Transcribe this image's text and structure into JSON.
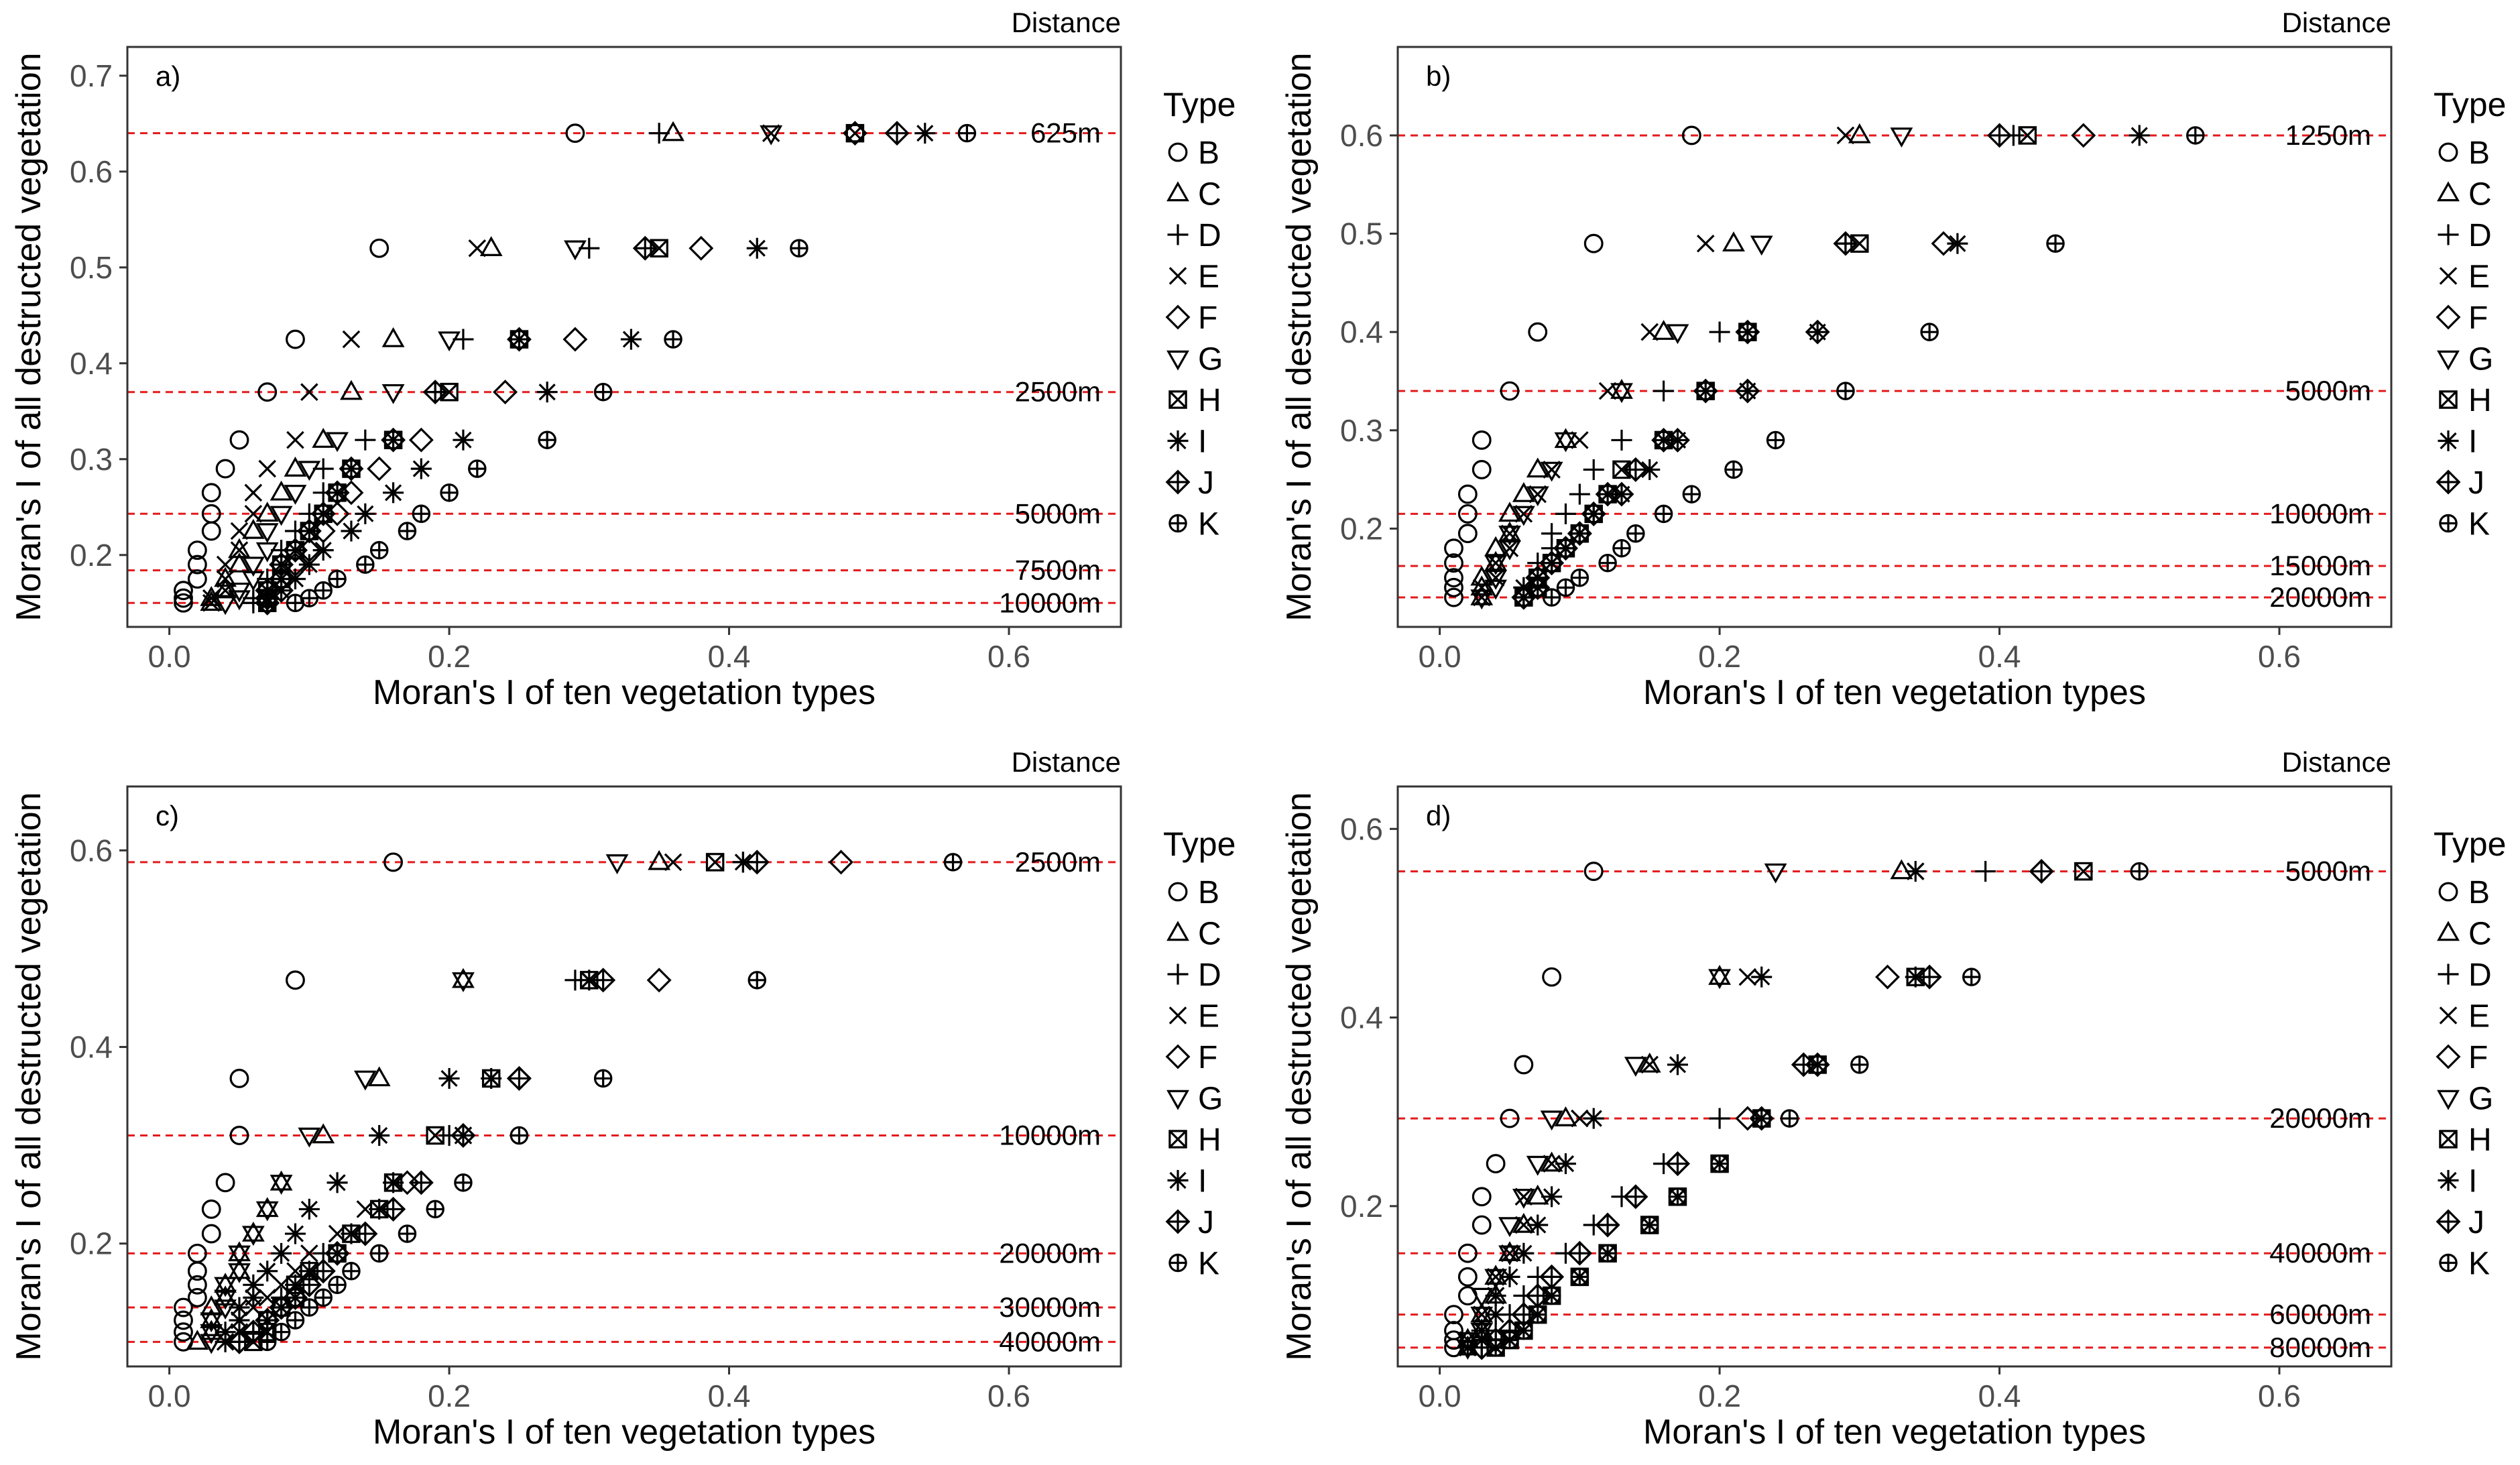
{
  "figure": {
    "marker_types": [
      "B",
      "C",
      "D",
      "E",
      "F",
      "G",
      "H",
      "I",
      "J",
      "K"
    ],
    "reference_line_color": "#e41a1c",
    "axis_color": "#333333",
    "text_color": "#000000"
  },
  "chart_data": [
    {
      "type": "scatter",
      "panel": "a)",
      "xlabel": "Moran's I of ten vegetation types",
      "ylabel": "Moran's I of all destructed vegetation",
      "legend_title": "Type",
      "legend_labels": [
        "B",
        "C",
        "D",
        "E",
        "F",
        "G",
        "H",
        "I",
        "J",
        "K"
      ],
      "distance_title": "Distance",
      "xlim": [
        -0.03,
        0.68
      ],
      "ylim": [
        0.125,
        0.73
      ],
      "xticks": [
        0.0,
        0.2,
        0.4,
        0.6
      ],
      "xtick_labels": [
        "0.0",
        "0.2",
        "0.4",
        "0.6"
      ],
      "yticks": [
        0.2,
        0.3,
        0.4,
        0.5,
        0.6,
        0.7
      ],
      "ytick_labels": [
        "0.2",
        "0.3",
        "0.4",
        "0.5",
        "0.6",
        "0.7"
      ],
      "reference_lines": [
        {
          "y": 0.64,
          "label": "625m"
        },
        {
          "y": 0.37,
          "label": "2500m"
        },
        {
          "y": 0.243,
          "label": "5000m"
        },
        {
          "y": 0.184,
          "label": "7500m"
        },
        {
          "y": 0.15,
          "label": "10000m"
        }
      ],
      "rows": [
        {
          "y": 0.64,
          "x": [
            0.29,
            0.36,
            0.35,
            0.43,
            0.49,
            0.43,
            0.49,
            0.54,
            0.52,
            0.57
          ]
        },
        {
          "y": 0.52,
          "x": [
            0.15,
            0.23,
            0.3,
            0.22,
            0.38,
            0.29,
            0.35,
            0.42,
            0.34,
            0.45
          ]
        },
        {
          "y": 0.425,
          "x": [
            0.09,
            0.16,
            0.21,
            0.13,
            0.29,
            0.2,
            0.25,
            0.33,
            0.25,
            0.36
          ]
        },
        {
          "y": 0.37,
          "x": [
            0.07,
            0.13,
            0.19,
            0.1,
            0.24,
            0.16,
            0.2,
            0.27,
            0.19,
            0.31
          ]
        },
        {
          "y": 0.32,
          "x": [
            0.05,
            0.11,
            0.14,
            0.09,
            0.18,
            0.12,
            0.16,
            0.21,
            0.16,
            0.27
          ]
        },
        {
          "y": 0.29,
          "x": [
            0.04,
            0.09,
            0.11,
            0.07,
            0.15,
            0.1,
            0.13,
            0.18,
            0.13,
            0.22
          ]
        },
        {
          "y": 0.265,
          "x": [
            0.03,
            0.08,
            0.11,
            0.06,
            0.13,
            0.09,
            0.12,
            0.16,
            0.12,
            0.2
          ]
        },
        {
          "y": 0.243,
          "x": [
            0.03,
            0.07,
            0.1,
            0.06,
            0.12,
            0.08,
            0.11,
            0.14,
            0.11,
            0.18
          ]
        },
        {
          "y": 0.225,
          "x": [
            0.03,
            0.06,
            0.09,
            0.05,
            0.11,
            0.07,
            0.1,
            0.13,
            0.1,
            0.17
          ]
        },
        {
          "y": 0.205,
          "x": [
            0.02,
            0.05,
            0.08,
            0.05,
            0.1,
            0.07,
            0.09,
            0.11,
            0.09,
            0.15
          ]
        },
        {
          "y": 0.19,
          "x": [
            0.02,
            0.05,
            0.08,
            0.04,
            0.09,
            0.06,
            0.08,
            0.1,
            0.08,
            0.14
          ]
        },
        {
          "y": 0.175,
          "x": [
            0.02,
            0.04,
            0.07,
            0.04,
            0.08,
            0.06,
            0.08,
            0.09,
            0.08,
            0.12
          ]
        },
        {
          "y": 0.163,
          "x": [
            0.01,
            0.04,
            0.07,
            0.04,
            0.08,
            0.05,
            0.07,
            0.08,
            0.07,
            0.11
          ]
        },
        {
          "y": 0.155,
          "x": [
            0.01,
            0.03,
            0.06,
            0.03,
            0.07,
            0.05,
            0.07,
            0.07,
            0.07,
            0.1
          ]
        },
        {
          "y": 0.15,
          "x": [
            0.01,
            0.03,
            0.06,
            0.03,
            0.07,
            0.04,
            0.07,
            0.07,
            0.07,
            0.09
          ]
        }
      ]
    },
    {
      "type": "scatter",
      "panel": "b)",
      "xlabel": "Moran's I of ten vegetation types",
      "ylabel": "Moran's I of all destructed vegetation",
      "legend_title": "Type",
      "legend_labels": [
        "B",
        "C",
        "D",
        "E",
        "F",
        "G",
        "H",
        "I",
        "J",
        "K"
      ],
      "distance_title": "Distance",
      "xlim": [
        -0.03,
        0.68
      ],
      "ylim": [
        0.1,
        0.69
      ],
      "xticks": [
        0.0,
        0.2,
        0.4,
        0.6
      ],
      "xtick_labels": [
        "0.0",
        "0.2",
        "0.4",
        "0.6"
      ],
      "yticks": [
        0.2,
        0.3,
        0.4,
        0.5,
        0.6
      ],
      "ytick_labels": [
        "0.2",
        "0.3",
        "0.4",
        "0.5",
        "0.6"
      ],
      "reference_lines": [
        {
          "y": 0.6,
          "label": "1250m"
        },
        {
          "y": 0.34,
          "label": "5000m"
        },
        {
          "y": 0.215,
          "label": "10000m"
        },
        {
          "y": 0.162,
          "label": "15000m"
        },
        {
          "y": 0.13,
          "label": "20000m"
        }
      ],
      "rows": [
        {
          "y": 0.6,
          "x": [
            0.18,
            0.3,
            0.41,
            0.29,
            0.46,
            0.33,
            0.42,
            0.5,
            0.4,
            0.54
          ]
        },
        {
          "y": 0.49,
          "x": [
            0.11,
            0.21,
            0.29,
            0.19,
            0.36,
            0.23,
            0.3,
            0.37,
            0.29,
            0.44
          ]
        },
        {
          "y": 0.4,
          "x": [
            0.07,
            0.16,
            0.2,
            0.15,
            0.27,
            0.17,
            0.22,
            0.27,
            0.22,
            0.35
          ]
        },
        {
          "y": 0.34,
          "x": [
            0.05,
            0.13,
            0.16,
            0.12,
            0.22,
            0.13,
            0.19,
            0.22,
            0.19,
            0.29
          ]
        },
        {
          "y": 0.29,
          "x": [
            0.03,
            0.09,
            0.13,
            0.1,
            0.17,
            0.09,
            0.16,
            0.17,
            0.16,
            0.24
          ]
        },
        {
          "y": 0.26,
          "x": [
            0.03,
            0.07,
            0.11,
            0.08,
            0.14,
            0.08,
            0.13,
            0.15,
            0.14,
            0.21
          ]
        },
        {
          "y": 0.235,
          "x": [
            0.02,
            0.06,
            0.1,
            0.07,
            0.13,
            0.07,
            0.12,
            0.13,
            0.12,
            0.18
          ]
        },
        {
          "y": 0.215,
          "x": [
            0.02,
            0.05,
            0.09,
            0.06,
            0.11,
            0.06,
            0.11,
            0.11,
            0.11,
            0.16
          ]
        },
        {
          "y": 0.195,
          "x": [
            0.02,
            0.05,
            0.08,
            0.05,
            0.1,
            0.05,
            0.1,
            0.1,
            0.1,
            0.14
          ]
        },
        {
          "y": 0.18,
          "x": [
            0.01,
            0.04,
            0.08,
            0.05,
            0.09,
            0.05,
            0.09,
            0.09,
            0.09,
            0.13
          ]
        },
        {
          "y": 0.165,
          "x": [
            0.01,
            0.04,
            0.07,
            0.04,
            0.08,
            0.04,
            0.08,
            0.08,
            0.08,
            0.12
          ]
        },
        {
          "y": 0.15,
          "x": [
            0.01,
            0.03,
            0.07,
            0.04,
            0.07,
            0.04,
            0.07,
            0.07,
            0.07,
            0.1
          ]
        },
        {
          "y": 0.14,
          "x": [
            0.01,
            0.03,
            0.06,
            0.03,
            0.07,
            0.04,
            0.07,
            0.06,
            0.07,
            0.09
          ]
        },
        {
          "y": 0.13,
          "x": [
            0.01,
            0.03,
            0.06,
            0.03,
            0.06,
            0.03,
            0.06,
            0.06,
            0.06,
            0.08
          ]
        }
      ]
    },
    {
      "type": "scatter",
      "panel": "c)",
      "xlabel": "Moran's I of ten vegetation types",
      "ylabel": "Moran's I of all destructed vegetation",
      "legend_title": "Type",
      "legend_labels": [
        "B",
        "C",
        "D",
        "E",
        "F",
        "G",
        "H",
        "I",
        "J",
        "K"
      ],
      "distance_title": "Distance",
      "xlim": [
        -0.03,
        0.68
      ],
      "ylim": [
        0.075,
        0.665
      ],
      "xticks": [
        0.0,
        0.2,
        0.4,
        0.6
      ],
      "xtick_labels": [
        "0.0",
        "0.2",
        "0.4",
        "0.6"
      ],
      "yticks": [
        0.2,
        0.4,
        0.6
      ],
      "ytick_labels": [
        "0.2",
        "0.4",
        "0.6"
      ],
      "reference_lines": [
        {
          "y": 0.588,
          "label": "2500m"
        },
        {
          "y": 0.31,
          "label": "10000m"
        },
        {
          "y": 0.19,
          "label": "20000m"
        },
        {
          "y": 0.135,
          "label": "30000m"
        },
        {
          "y": 0.1,
          "label": "40000m"
        }
      ],
      "rows": [
        {
          "y": 0.588,
          "x": [
            0.16,
            0.35,
            0.41,
            0.36,
            0.48,
            0.32,
            0.39,
            0.41,
            0.42,
            0.56
          ]
        },
        {
          "y": 0.468,
          "x": [
            0.09,
            0.21,
            0.29,
            0.3,
            0.35,
            0.21,
            0.3,
            0.3,
            0.31,
            0.42
          ]
        },
        {
          "y": 0.368,
          "x": [
            0.05,
            0.15,
            0.23,
            0.23,
            0.25,
            0.14,
            0.23,
            0.2,
            0.25,
            0.31
          ]
        },
        {
          "y": 0.31,
          "x": [
            0.05,
            0.11,
            0.2,
            0.21,
            0.21,
            0.1,
            0.19,
            0.15,
            0.21,
            0.25
          ]
        },
        {
          "y": 0.262,
          "x": [
            0.04,
            0.08,
            0.16,
            0.16,
            0.17,
            0.08,
            0.16,
            0.12,
            0.18,
            0.21
          ]
        },
        {
          "y": 0.235,
          "x": [
            0.03,
            0.07,
            0.15,
            0.14,
            0.16,
            0.07,
            0.15,
            0.1,
            0.16,
            0.19
          ]
        },
        {
          "y": 0.21,
          "x": [
            0.03,
            0.06,
            0.13,
            0.12,
            0.14,
            0.06,
            0.13,
            0.09,
            0.14,
            0.17
          ]
        },
        {
          "y": 0.19,
          "x": [
            0.02,
            0.05,
            0.11,
            0.1,
            0.12,
            0.05,
            0.12,
            0.08,
            0.12,
            0.15
          ]
        },
        {
          "y": 0.172,
          "x": [
            0.02,
            0.05,
            0.1,
            0.09,
            0.11,
            0.05,
            0.1,
            0.07,
            0.11,
            0.13
          ]
        },
        {
          "y": 0.158,
          "x": [
            0.02,
            0.04,
            0.09,
            0.08,
            0.1,
            0.04,
            0.09,
            0.06,
            0.1,
            0.12
          ]
        },
        {
          "y": 0.145,
          "x": [
            0.02,
            0.04,
            0.08,
            0.07,
            0.09,
            0.04,
            0.09,
            0.06,
            0.09,
            0.11
          ]
        },
        {
          "y": 0.135,
          "x": [
            0.01,
            0.03,
            0.08,
            0.06,
            0.08,
            0.04,
            0.08,
            0.05,
            0.08,
            0.1
          ]
        },
        {
          "y": 0.122,
          "x": [
            0.01,
            0.03,
            0.07,
            0.05,
            0.07,
            0.03,
            0.07,
            0.05,
            0.07,
            0.09
          ]
        },
        {
          "y": 0.11,
          "x": [
            0.01,
            0.03,
            0.06,
            0.05,
            0.06,
            0.03,
            0.07,
            0.04,
            0.06,
            0.08
          ]
        },
        {
          "y": 0.1,
          "x": [
            0.01,
            0.02,
            0.05,
            0.04,
            0.05,
            0.03,
            0.06,
            0.04,
            0.05,
            0.07
          ]
        }
      ]
    },
    {
      "type": "scatter",
      "panel": "d)",
      "xlabel": "Moran's I of ten vegetation types",
      "ylabel": "Moran's I of all destructed vegetation",
      "legend_title": "Type",
      "legend_labels": [
        "B",
        "C",
        "D",
        "E",
        "F",
        "G",
        "H",
        "I",
        "J",
        "K"
      ],
      "distance_title": "Distance",
      "xlim": [
        -0.03,
        0.68
      ],
      "ylim": [
        0.03,
        0.645
      ],
      "xticks": [
        0.0,
        0.2,
        0.4,
        0.6
      ],
      "xtick_labels": [
        "0.0",
        "0.2",
        "0.4",
        "0.6"
      ],
      "yticks": [
        0.2,
        0.4,
        0.6
      ],
      "ytick_labels": [
        "0.2",
        "0.4",
        "0.6"
      ],
      "reference_lines": [
        {
          "y": 0.555,
          "label": "5000m"
        },
        {
          "y": 0.293,
          "label": "20000m"
        },
        {
          "y": 0.15,
          "label": "40000m"
        },
        {
          "y": 0.085,
          "label": "60000m"
        },
        {
          "y": 0.05,
          "label": "80000m"
        }
      ],
      "rows": [
        {
          "y": 0.555,
          "x": [
            0.11,
            0.33,
            0.39,
            0.34,
            0.43,
            0.24,
            0.46,
            0.34,
            0.43,
            0.5
          ]
        },
        {
          "y": 0.443,
          "x": [
            0.08,
            0.2,
            0.34,
            0.22,
            0.32,
            0.2,
            0.34,
            0.23,
            0.35,
            0.38
          ]
        },
        {
          "y": 0.35,
          "x": [
            0.06,
            0.15,
            0.26,
            0.15,
            0.26,
            0.14,
            0.27,
            0.17,
            0.27,
            0.3
          ]
        },
        {
          "y": 0.293,
          "x": [
            0.05,
            0.09,
            0.2,
            0.1,
            0.22,
            0.08,
            0.23,
            0.11,
            0.23,
            0.25
          ]
        },
        {
          "y": 0.245,
          "x": [
            0.04,
            0.08,
            0.16,
            0.08,
            0.17,
            0.07,
            0.2,
            0.09,
            0.17,
            0.2
          ]
        },
        {
          "y": 0.21,
          "x": [
            0.03,
            0.07,
            0.13,
            0.06,
            0.14,
            0.06,
            0.17,
            0.08,
            0.14,
            0.17
          ]
        },
        {
          "y": 0.18,
          "x": [
            0.03,
            0.06,
            0.11,
            0.06,
            0.12,
            0.05,
            0.15,
            0.07,
            0.12,
            0.15
          ]
        },
        {
          "y": 0.15,
          "x": [
            0.02,
            0.05,
            0.09,
            0.05,
            0.1,
            0.05,
            0.12,
            0.06,
            0.1,
            0.12
          ]
        },
        {
          "y": 0.125,
          "x": [
            0.02,
            0.04,
            0.07,
            0.04,
            0.08,
            0.04,
            0.1,
            0.05,
            0.08,
            0.1
          ]
        },
        {
          "y": 0.105,
          "x": [
            0.02,
            0.04,
            0.06,
            0.04,
            0.07,
            0.03,
            0.08,
            0.04,
            0.07,
            0.08
          ]
        },
        {
          "y": 0.085,
          "x": [
            0.01,
            0.03,
            0.05,
            0.03,
            0.06,
            0.03,
            0.07,
            0.04,
            0.06,
            0.07
          ]
        },
        {
          "y": 0.068,
          "x": [
            0.01,
            0.03,
            0.04,
            0.03,
            0.05,
            0.03,
            0.06,
            0.03,
            0.05,
            0.06
          ]
        },
        {
          "y": 0.058,
          "x": [
            0.01,
            0.02,
            0.04,
            0.02,
            0.04,
            0.02,
            0.05,
            0.03,
            0.04,
            0.05
          ]
        },
        {
          "y": 0.05,
          "x": [
            0.01,
            0.02,
            0.03,
            0.02,
            0.03,
            0.02,
            0.04,
            0.02,
            0.03,
            0.04
          ]
        }
      ]
    }
  ]
}
